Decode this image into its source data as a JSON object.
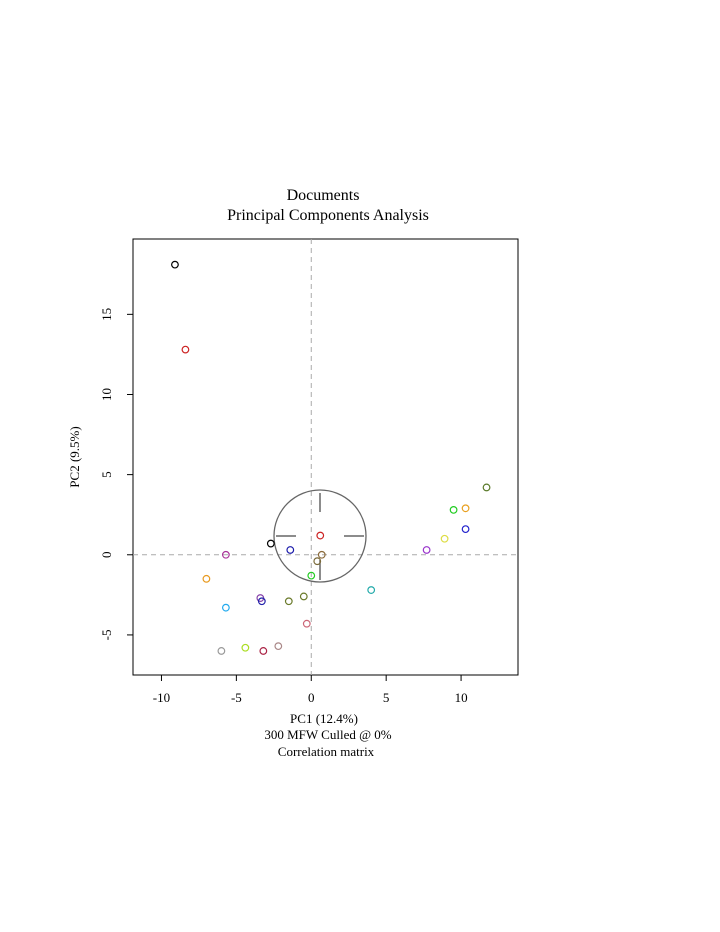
{
  "chart_data": {
    "type": "scatter",
    "title": "Documents",
    "subtitle": "Principal Components Analysis",
    "xlabel": "PC1 (12.4%)",
    "ylabel": "PC2 (9.5%)",
    "caption_lines": [
      "300 MFW  Culled @ 0%",
      "Correlation matrix"
    ],
    "xlim": [
      -11.9,
      13.8
    ],
    "ylim": [
      -7.5,
      19.7
    ],
    "xticks": [
      -10,
      -5,
      0,
      5,
      10
    ],
    "yticks": [
      -5,
      0,
      5,
      10,
      15
    ],
    "grid": false,
    "reference_lines": {
      "x": 0,
      "y": 0,
      "style": "dashed",
      "color": "#aaaaaa"
    },
    "points": [
      {
        "x": -9.1,
        "y": 18.1,
        "color": "#000000"
      },
      {
        "x": -8.4,
        "y": 12.8,
        "color": "#cc2222"
      },
      {
        "x": -5.7,
        "y": 0.0,
        "color": "#aa3399"
      },
      {
        "x": -2.7,
        "y": 0.7,
        "color": "#000000"
      },
      {
        "x": -1.4,
        "y": 0.3,
        "color": "#1a1aaa"
      },
      {
        "x": 0.6,
        "y": 1.2,
        "color": "#cc2222"
      },
      {
        "x": 0.7,
        "y": 0.0,
        "color": "#8a6a3a"
      },
      {
        "x": 0.4,
        "y": -0.4,
        "color": "#7a6a3a"
      },
      {
        "x": 0.0,
        "y": -1.3,
        "color": "#22cc22"
      },
      {
        "x": -7.0,
        "y": -1.5,
        "color": "#e89a20"
      },
      {
        "x": -5.7,
        "y": -3.3,
        "color": "#22aaee"
      },
      {
        "x": -3.4,
        "y": -2.7,
        "color": "#8844aa"
      },
      {
        "x": -3.3,
        "y": -2.9,
        "color": "#2222aa"
      },
      {
        "x": -1.5,
        "y": -2.9,
        "color": "#6a7a2a"
      },
      {
        "x": -0.5,
        "y": -2.6,
        "color": "#6a7a2a"
      },
      {
        "x": -0.3,
        "y": -4.3,
        "color": "#cc6677"
      },
      {
        "x": 4.0,
        "y": -2.2,
        "color": "#22aaaa"
      },
      {
        "x": -6.0,
        "y": -6.0,
        "color": "#999999"
      },
      {
        "x": -4.4,
        "y": -5.8,
        "color": "#aadd22"
      },
      {
        "x": -3.2,
        "y": -6.0,
        "color": "#aa2244"
      },
      {
        "x": -2.2,
        "y": -5.7,
        "color": "#aa8888"
      },
      {
        "x": 7.7,
        "y": 0.3,
        "color": "#9933cc"
      },
      {
        "x": 8.9,
        "y": 1.0,
        "color": "#dddd44"
      },
      {
        "x": 9.5,
        "y": 2.8,
        "color": "#22cc22"
      },
      {
        "x": 10.3,
        "y": 2.9,
        "color": "#e8a020"
      },
      {
        "x": 10.3,
        "y": 1.6,
        "color": "#2222cc"
      },
      {
        "x": 11.7,
        "y": 4.2,
        "color": "#5a7a2a"
      }
    ]
  }
}
